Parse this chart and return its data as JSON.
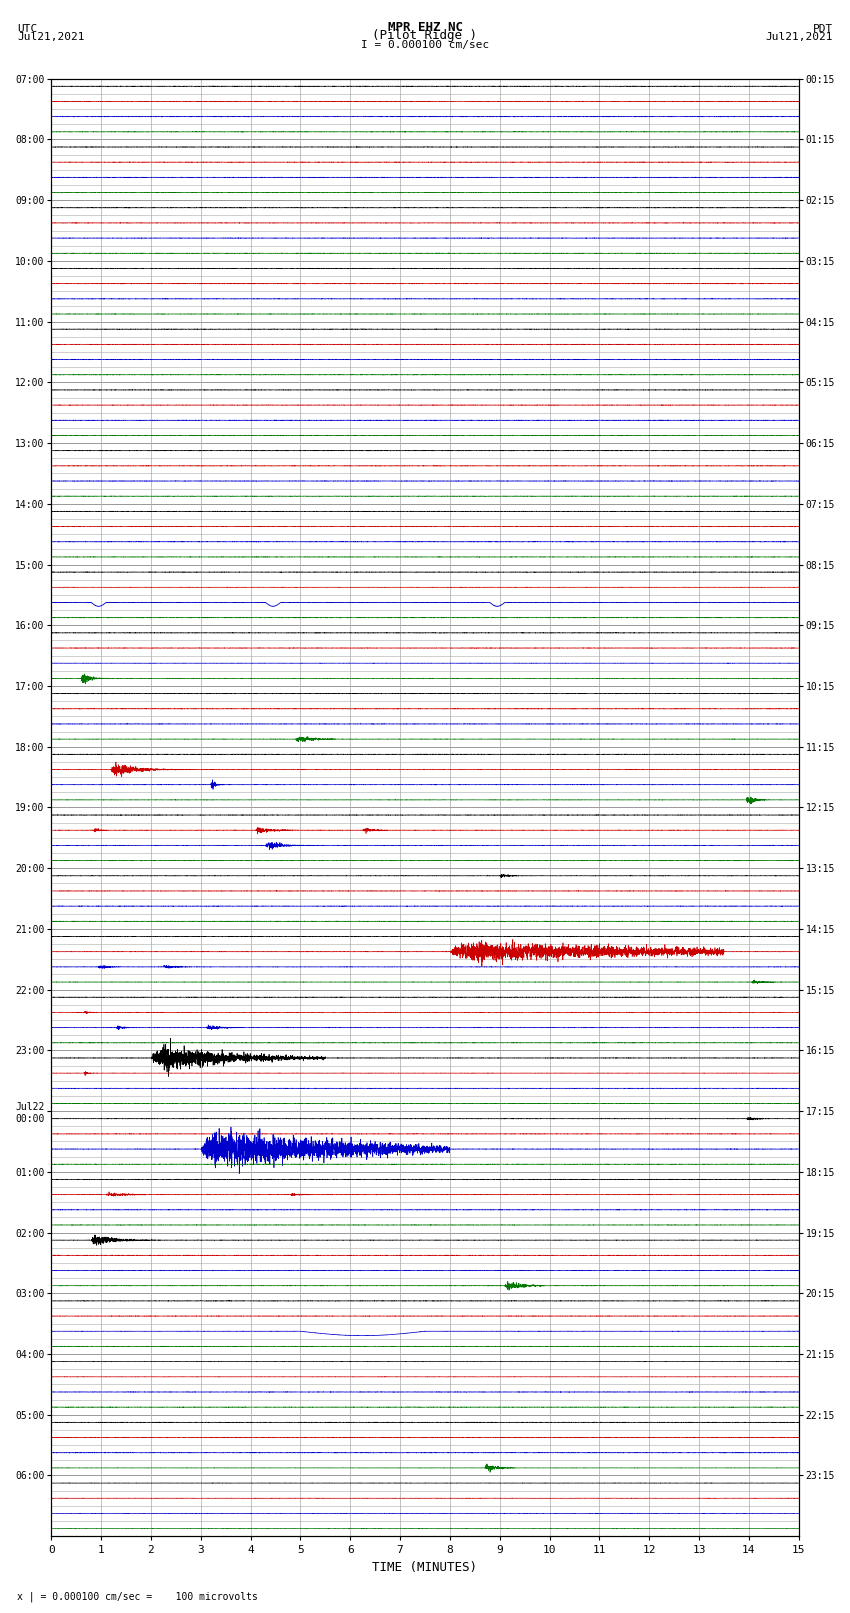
{
  "title_line1": "MPR EHZ NC",
  "title_line2": "(Pilot Ridge )",
  "title_scale": "I = 0.000100 cm/sec",
  "left_header_line1": "UTC",
  "left_header_line2": "Jul21,2021",
  "right_header_line1": "PDT",
  "right_header_line2": "Jul21,2021",
  "xlabel": "TIME (MINUTES)",
  "footer": "x | = 0.000100 cm/sec =    100 microvolts",
  "utc_labels": [
    "07:00",
    "08:00",
    "09:00",
    "10:00",
    "11:00",
    "12:00",
    "13:00",
    "14:00",
    "15:00",
    "16:00",
    "17:00",
    "18:00",
    "19:00",
    "20:00",
    "21:00",
    "22:00",
    "23:00",
    "Jul22\n00:00",
    "01:00",
    "02:00",
    "03:00",
    "04:00",
    "05:00",
    "06:00"
  ],
  "pdt_labels": [
    "00:15",
    "01:15",
    "02:15",
    "03:15",
    "04:15",
    "05:15",
    "06:15",
    "07:15",
    "08:15",
    "09:15",
    "10:15",
    "11:15",
    "12:15",
    "13:15",
    "14:15",
    "15:15",
    "16:15",
    "17:15",
    "18:15",
    "19:15",
    "20:15",
    "21:15",
    "22:15",
    "23:15"
  ],
  "num_rows": 24,
  "xmin": 0,
  "xmax": 15,
  "background_color": "#ffffff",
  "grid_color": "#aaaaaa",
  "colors": {
    "black": "#000000",
    "red": "#cc0000",
    "blue": "#0000cc",
    "green": "#007700"
  }
}
